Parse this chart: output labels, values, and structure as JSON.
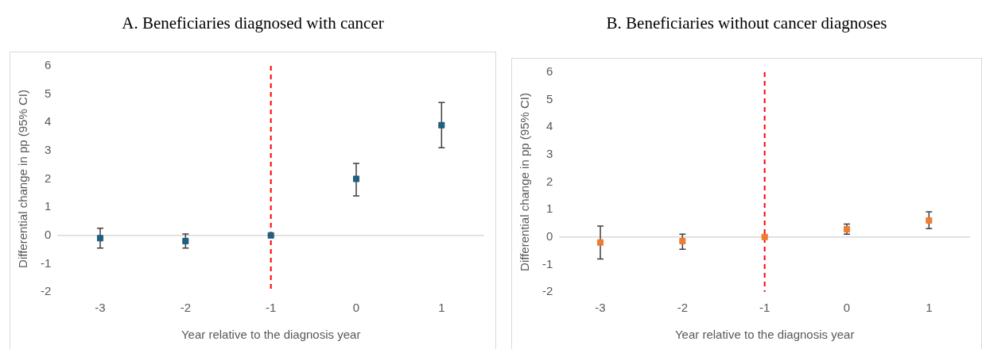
{
  "chart_data": [
    {
      "type": "scatter",
      "title": "A. Beneficiaries diagnosed with cancer",
      "xlabel": "Year relative to the diagnosis year",
      "ylabel": "Differential change in pp (95% CI)",
      "categories": [
        "-3",
        "-2",
        "-1",
        "0",
        "1"
      ],
      "ylim": [
        -2,
        6
      ],
      "yticks": [
        -2,
        -1,
        0,
        1,
        2,
        3,
        4,
        5,
        6
      ],
      "grid": false,
      "legend": false,
      "marker": "square",
      "series": [
        {
          "color": "#1f5f7f",
          "values": [
            -0.1,
            -0.2,
            0,
            2.0,
            3.9
          ],
          "errors": [
            [
              -0.45,
              0.25
            ],
            [
              -0.45,
              0.05
            ],
            null,
            [
              1.4,
              2.55
            ],
            [
              3.1,
              4.7
            ]
          ]
        }
      ],
      "ref_lines": [
        {
          "axis": "x",
          "value": "-1",
          "color": "#ff0000",
          "line_style": "dashed"
        }
      ]
    },
    {
      "type": "scatter",
      "title": "B. Beneficiaries without cancer diagnoses",
      "xlabel": "Year relative to the diagnosis year",
      "ylabel": "Differential change in pp (95% CI)",
      "categories": [
        "-3",
        "-2",
        "-1",
        "0",
        "1"
      ],
      "ylim": [
        -2,
        6
      ],
      "yticks": [
        -2,
        -1,
        0,
        1,
        2,
        3,
        4,
        5,
        6
      ],
      "grid": false,
      "legend": false,
      "marker": "square",
      "series": [
        {
          "color": "#ed7d31",
          "values": [
            -0.2,
            -0.15,
            0,
            0.28,
            0.6
          ],
          "errors": [
            [
              -0.8,
              0.4
            ],
            [
              -0.45,
              0.1
            ],
            null,
            [
              0.1,
              0.47
            ],
            [
              0.3,
              0.92
            ]
          ]
        }
      ],
      "ref_lines": [
        {
          "axis": "x",
          "value": "-1",
          "color": "#ff0000",
          "line_style": "dashed"
        }
      ]
    }
  ]
}
